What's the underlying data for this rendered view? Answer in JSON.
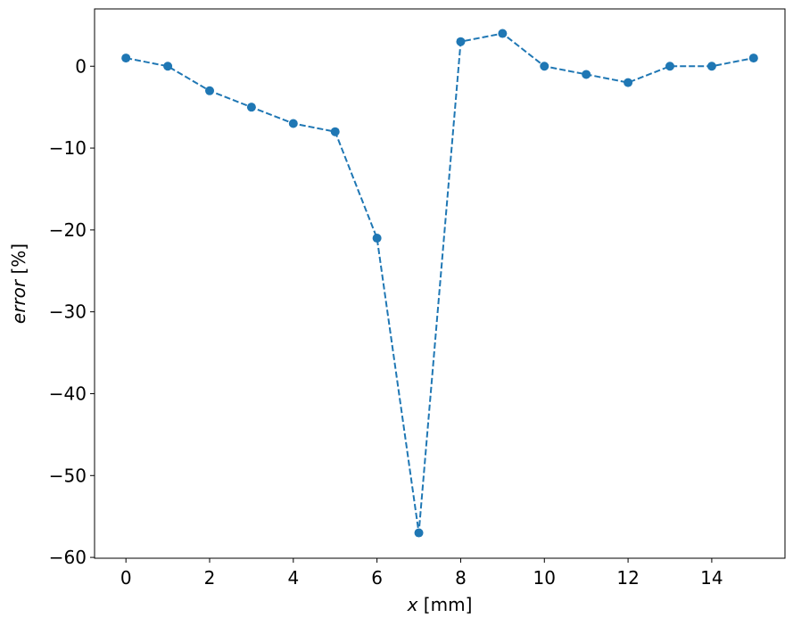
{
  "chart_data": {
    "type": "line",
    "title": "",
    "xlabel_var": "x",
    "xlabel_unit": " [mm]",
    "ylabel_var": "error",
    "ylabel_unit": " [%]",
    "x": [
      0,
      1,
      2,
      3,
      4,
      5,
      6,
      7,
      8,
      9,
      10,
      11,
      12,
      13,
      14,
      15
    ],
    "series": [
      {
        "name": "error",
        "values": [
          1,
          0,
          -3,
          -5,
          -7,
          -8,
          -21,
          -57,
          3,
          4,
          0,
          -1,
          -2,
          0,
          0,
          1
        ],
        "color": "#1f77b4",
        "linestyle": "dashed",
        "marker": "circle"
      }
    ],
    "xlim": [
      -0.75,
      15.75
    ],
    "ylim": [
      -60.1,
      7.0
    ],
    "xticks": [
      0,
      2,
      4,
      6,
      8,
      10,
      12,
      14
    ],
    "yticks": [
      0,
      -10,
      -20,
      -30,
      -40,
      -50,
      -60
    ],
    "xtick_labels": [
      "0",
      "2",
      "4",
      "6",
      "8",
      "10",
      "12",
      "14"
    ],
    "ytick_labels": [
      "0",
      "−10",
      "−20",
      "−30",
      "−40",
      "−50",
      "−60"
    ],
    "grid": false,
    "legend": null
  }
}
